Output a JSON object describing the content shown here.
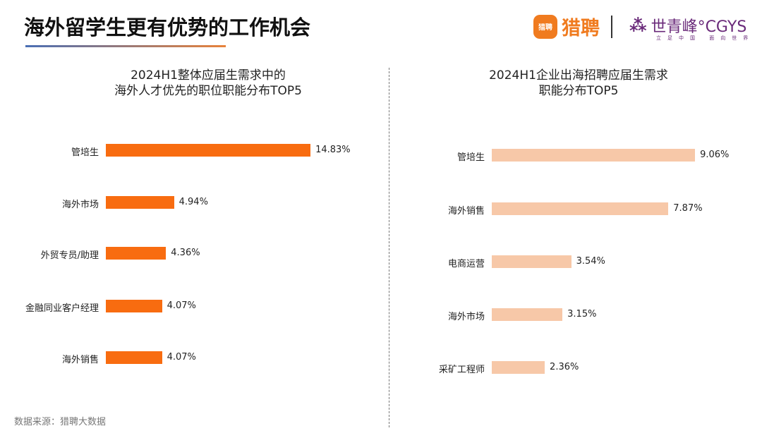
{
  "title": "海外留学生更有优势的工作机会",
  "logos": {
    "liepin_badge": "猎聘",
    "liepin": "猎聘",
    "cgys_mark": "⁂",
    "cgys": "世青峰°CGYS",
    "cgys_sub": "立足中国 面向世界"
  },
  "source": "数据来源：猎聘大数据",
  "chart_data": [
    {
      "type": "bar",
      "orientation": "horizontal",
      "title_lines": [
        "2024H1整体应届生需求中的",
        "海外人才优先的职位职能分布TOP5"
      ],
      "categories": [
        "管培生",
        "海外市场",
        "外贸专员/助理",
        "金融同业客户经理",
        "海外销售"
      ],
      "values": [
        14.83,
        4.94,
        4.36,
        4.07,
        4.07
      ],
      "labels": [
        "14.83%",
        "4.94%",
        "4.36%",
        "4.07%",
        "4.07%"
      ],
      "color": "#f86c10"
    },
    {
      "type": "bar",
      "orientation": "horizontal",
      "title_lines": [
        "2024H1企业出海招聘应届生需求",
        "职能分布TOP5"
      ],
      "categories": [
        "管培生",
        "海外销售",
        "电商运营",
        "海外市场",
        "采矿工程师"
      ],
      "values": [
        9.06,
        7.87,
        3.54,
        3.15,
        2.36
      ],
      "labels": [
        "9.06%",
        "7.87%",
        "3.54%",
        "3.15%",
        "2.36%"
      ],
      "color": "#f7c8a8"
    }
  ]
}
